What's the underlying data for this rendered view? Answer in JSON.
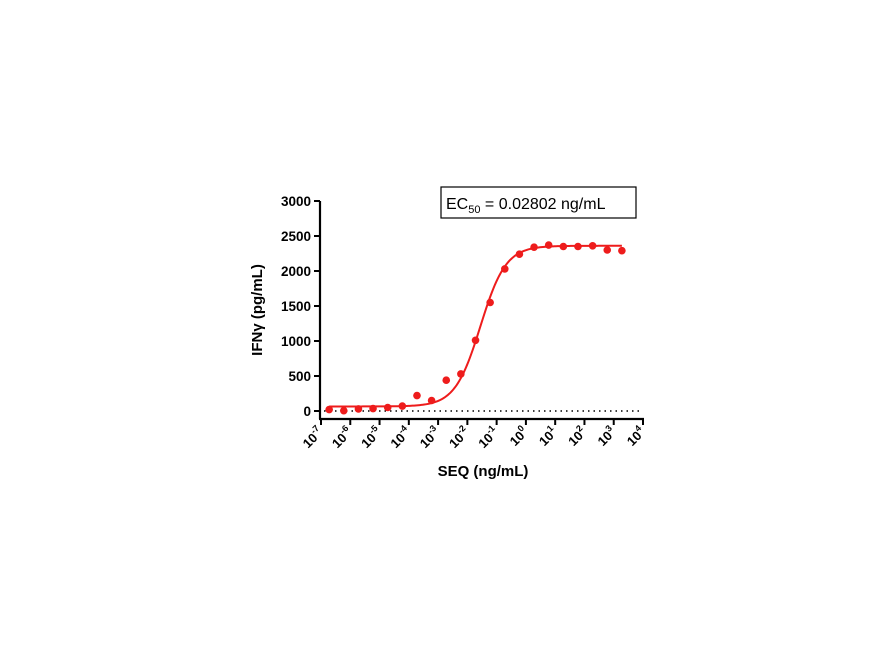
{
  "chart_data": {
    "type": "scatter",
    "xlabel": "SEQ (ng/mL)",
    "ylabel": "IFNγ (pg/mL)",
    "x_scale": "log10",
    "xlim": [
      1e-07,
      10000.0
    ],
    "ylim": [
      0,
      3000
    ],
    "x_ticks": [
      {
        "base": "10",
        "exp": "-7"
      },
      {
        "base": "10",
        "exp": "-6"
      },
      {
        "base": "10",
        "exp": "-5"
      },
      {
        "base": "10",
        "exp": "-4"
      },
      {
        "base": "10",
        "exp": "-3"
      },
      {
        "base": "10",
        "exp": "-2"
      },
      {
        "base": "10",
        "exp": "-1"
      },
      {
        "base": "10",
        "exp": "0"
      },
      {
        "base": "10",
        "exp": "1"
      },
      {
        "base": "10",
        "exp": "2"
      },
      {
        "base": "10",
        "exp": "3"
      },
      {
        "base": "10",
        "exp": "4"
      }
    ],
    "y_ticks": [
      "0",
      "500",
      "1000",
      "1500",
      "2000",
      "2500",
      "3000"
    ],
    "grid": false,
    "baseline_dotted_at": 0,
    "color": "#ee1c1c",
    "annotation": {
      "prefix": "EC",
      "subscript": "50",
      "suffix": " = 0.02802 ng/mL"
    },
    "series": [
      {
        "x": [
          1.9e-07,
          6e-07,
          1.9e-06,
          6e-06,
          1.9e-05,
          6e-05,
          0.00019,
          0.0006,
          0.0019,
          0.006,
          0.019,
          0.06,
          0.19,
          0.6,
          1.9,
          6,
          19,
          60,
          190,
          600,
          1900
        ],
        "y": [
          20,
          5,
          30,
          35,
          50,
          70,
          220,
          150,
          440,
          530,
          1010,
          1550,
          2030,
          2240,
          2340,
          2370,
          2350,
          2350,
          2360,
          2300,
          2290
        ]
      }
    ],
    "fit": {
      "model": "4PL",
      "bottom": 65,
      "top": 2360,
      "ec50": 0.02802,
      "hill": 1.0
    }
  }
}
